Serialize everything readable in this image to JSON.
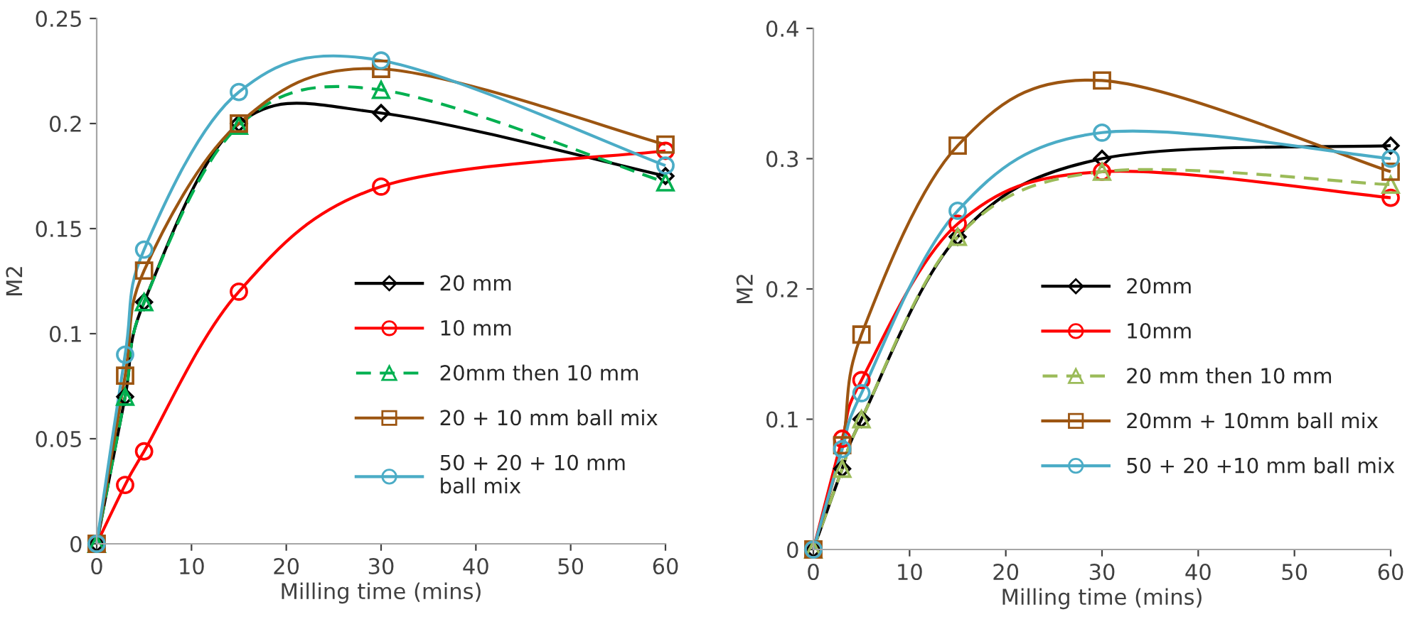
{
  "chart_data": [
    {
      "type": "line",
      "xlabel": "Milling time (mins)",
      "ylabel": "M2",
      "xlim": [
        0,
        60
      ],
      "xticks": [
        0,
        10,
        20,
        30,
        40,
        50,
        60
      ],
      "ylim": [
        0,
        0.25
      ],
      "yticks": [
        0,
        0.05,
        0.1,
        0.15,
        0.2,
        0.25
      ],
      "legend": "right",
      "grid": false,
      "x": [
        0,
        3,
        5,
        15,
        30,
        60
      ],
      "series": [
        {
          "name": "20 mm",
          "color": "#000000",
          "marker": "diamond",
          "line_style": "solid",
          "values": [
            0,
            0.07,
            0.115,
            0.2,
            0.205,
            0.175
          ]
        },
        {
          "name": "10 mm",
          "color": "#ff0000",
          "marker": "circle",
          "line_style": "solid",
          "values": [
            0,
            0.028,
            0.044,
            0.12,
            0.17,
            0.187
          ]
        },
        {
          "name": "20mm then 10 mm",
          "color": "#00b050",
          "marker": "triangle",
          "line_style": "dashed",
          "values": [
            0,
            0.07,
            0.115,
            0.199,
            0.216,
            0.172
          ]
        },
        {
          "name": "20 + 10 mm ball mix",
          "color": "#9c5511",
          "marker": "square",
          "line_style": "solid",
          "values": [
            0,
            0.08,
            0.13,
            0.2,
            0.226,
            0.19
          ]
        },
        {
          "name": "50 + 20 + 10 mm\nball mix",
          "color": "#4bacc6",
          "marker": "circle",
          "line_style": "solid",
          "values": [
            0,
            0.09,
            0.14,
            0.215,
            0.23,
            0.18
          ]
        }
      ]
    },
    {
      "type": "line",
      "xlabel": "Milling time (mins)",
      "ylabel": "M2",
      "xlim": [
        0,
        60
      ],
      "xticks": [
        0,
        10,
        20,
        30,
        40,
        50,
        60
      ],
      "ylim": [
        0,
        0.4
      ],
      "yticks": [
        0,
        0.1,
        0.2,
        0.3,
        0.4
      ],
      "legend": "right",
      "grid": false,
      "x": [
        0,
        3,
        5,
        15,
        30,
        60
      ],
      "series": [
        {
          "name": "20mm",
          "color": "#000000",
          "marker": "diamond",
          "line_style": "solid",
          "values": [
            0,
            0.062,
            0.1,
            0.24,
            0.3,
            0.31
          ]
        },
        {
          "name": "10mm",
          "color": "#ff0000",
          "marker": "circle",
          "line_style": "solid",
          "values": [
            0,
            0.085,
            0.13,
            0.25,
            0.29,
            0.27
          ]
        },
        {
          "name": "20 mm then 10 mm",
          "color": "#9bbb59",
          "marker": "triangle",
          "line_style": "dashed",
          "values": [
            0,
            0.062,
            0.1,
            0.24,
            0.29,
            0.28
          ]
        },
        {
          "name": "20mm + 10mm ball mix",
          "color": "#9c5511",
          "marker": "square",
          "line_style": "solid",
          "values": [
            0,
            0.08,
            0.165,
            0.31,
            0.36,
            0.29
          ]
        },
        {
          "name": "50 + 20 +10 mm ball mix",
          "color": "#4bacc6",
          "marker": "circle",
          "line_style": "solid",
          "values": [
            0,
            0.077,
            0.12,
            0.26,
            0.32,
            0.3
          ]
        }
      ]
    }
  ]
}
